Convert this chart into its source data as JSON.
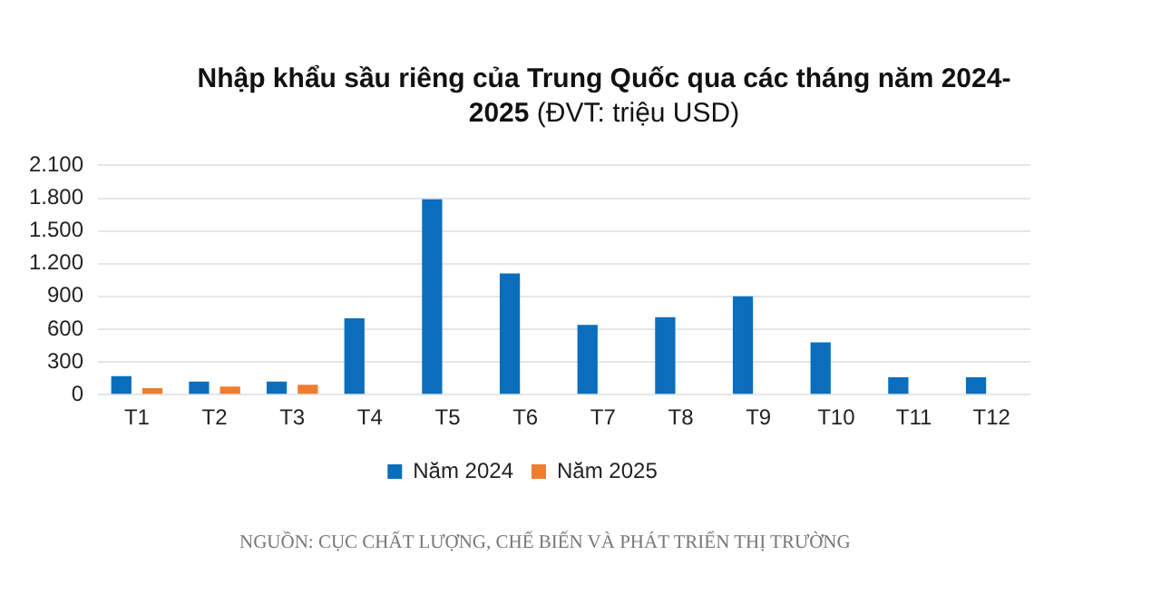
{
  "chart_data": {
    "type": "bar",
    "title": "Nhập khẩu sầu riêng của Trung Quốc qua các tháng năm 2024-2025",
    "subtitle": "(ĐVT: triệu USD)",
    "categories": [
      "T1",
      "T2",
      "T3",
      "T4",
      "T5",
      "T6",
      "T7",
      "T8",
      "T9",
      "T10",
      "T11",
      "T12"
    ],
    "series": [
      {
        "name": "Năm 2024",
        "color": "#0a6ebd",
        "values": [
          170,
          120,
          120,
          700,
          1790,
          1110,
          640,
          710,
          900,
          480,
          160,
          160
        ]
      },
      {
        "name": "Năm 2025",
        "color": "#ed7d31",
        "values": [
          60,
          75,
          90,
          null,
          null,
          null,
          null,
          null,
          null,
          null,
          null,
          null
        ]
      }
    ],
    "ylim": [
      0,
      2100
    ],
    "yticks": [
      0,
      300,
      600,
      900,
      {
        "value": 1200,
        "label": "1.200"
      },
      {
        "value": 1500,
        "label": "1.500"
      },
      {
        "value": 1800,
        "label": "1.800"
      },
      {
        "value": 2100,
        "label": "2.100"
      }
    ],
    "grid": "y",
    "legend": "bottom",
    "annotations": [
      "NGUỒN: CỤC CHẤT LƯỢNG, CHẾ BIẾN VÀ PHÁT TRIỂN THỊ TRƯỜNG"
    ]
  }
}
